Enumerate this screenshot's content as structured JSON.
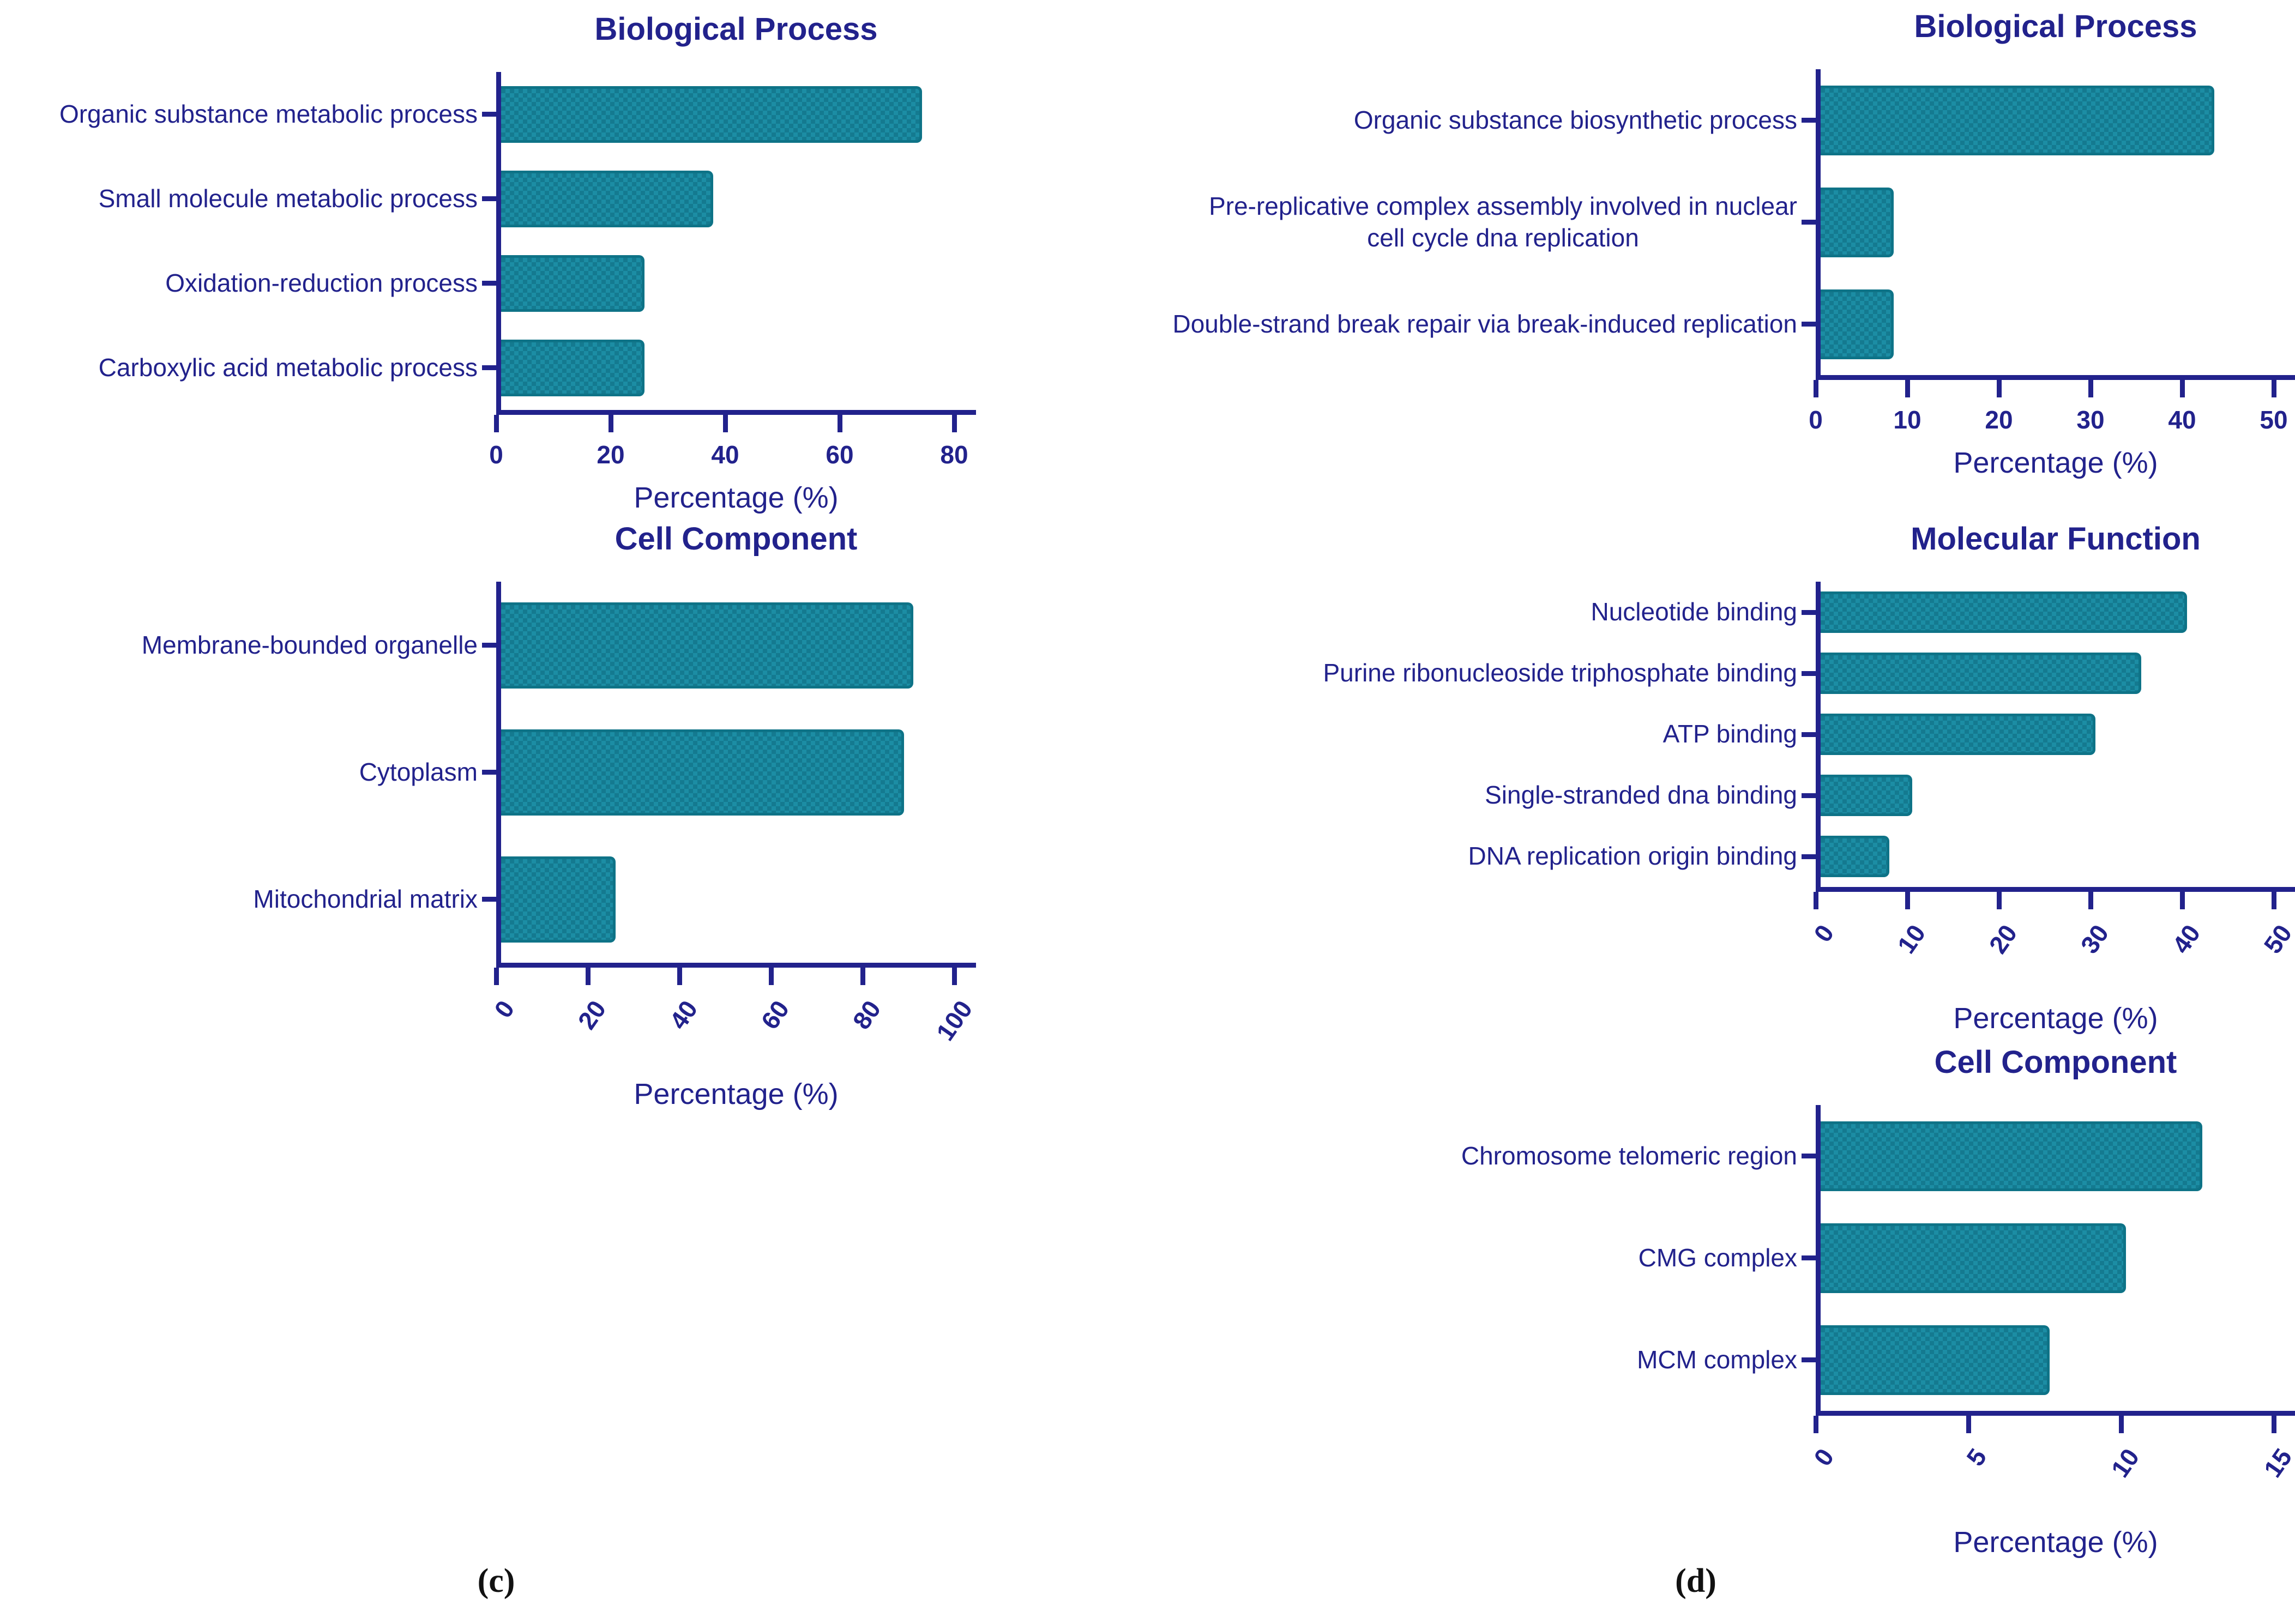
{
  "colors": {
    "navy": "#22228c",
    "bar_teal": "#17839a",
    "bar_teal_light": "#1c8da4",
    "bar_teal_dark": "#147a90",
    "bar_border": "#0e7387",
    "background": "#ffffff"
  },
  "panels": [
    {
      "label": "(c)"
    },
    {
      "label": "(d)"
    }
  ],
  "chart_data": [
    {
      "type": "bar",
      "panel": "c",
      "title": "Biological Process",
      "xlabel": "Percentage (%)",
      "orientation": "horizontal",
      "categories": [
        "Organic substance metabolic process",
        "Small molecule metabolic process",
        "Oxidation-reduction process",
        "Carboxylic acid metabolic process"
      ],
      "values": [
        73.5,
        37,
        25,
        25
      ],
      "xlim": [
        0,
        80
      ],
      "ticks": [
        0,
        20,
        40,
        60,
        80
      ],
      "rotated_tick_labels": false,
      "grid": false,
      "legend": "none"
    },
    {
      "type": "bar",
      "panel": "c",
      "title": "Cell Component",
      "xlabel": "Percentage (%)",
      "orientation": "horizontal",
      "categories": [
        "Membrane-bounded organelle",
        "Cytoplasm",
        "Mitochondrial matrix"
      ],
      "values": [
        90,
        88,
        25
      ],
      "xlim": [
        0,
        100
      ],
      "ticks": [
        0,
        20,
        40,
        60,
        80,
        100
      ],
      "rotated_tick_labels": true,
      "grid": false,
      "legend": "none"
    },
    {
      "type": "bar",
      "panel": "d",
      "title": "Biological Process",
      "xlabel": "Percentage (%)",
      "orientation": "horizontal",
      "categories": [
        "Organic substance biosynthetic process",
        "Pre-replicative complex assembly involved in nuclear\ncell cycle dna replication",
        "Double-strand break repair via break-induced replication"
      ],
      "values": [
        43,
        8,
        8
      ],
      "xlim": [
        0,
        50
      ],
      "ticks": [
        0,
        10,
        20,
        30,
        40,
        50
      ],
      "rotated_tick_labels": false,
      "grid": false,
      "legend": "none"
    },
    {
      "type": "bar",
      "panel": "d",
      "title": "Molecular Function",
      "xlabel": "Percentage (%)",
      "orientation": "horizontal",
      "categories": [
        "Nucleotide binding",
        "Purine ribonucleoside triphosphate binding",
        "ATP binding",
        "Single-stranded dna binding",
        "DNA replication origin binding"
      ],
      "values": [
        40,
        35,
        30,
        10,
        7.5
      ],
      "xlim": [
        0,
        50
      ],
      "ticks": [
        0,
        10,
        20,
        30,
        40,
        50
      ],
      "rotated_tick_labels": true,
      "grid": false,
      "legend": "none"
    },
    {
      "type": "bar",
      "panel": "d",
      "title": "Cell Component",
      "xlabel": "Percentage (%)",
      "orientation": "horizontal",
      "categories": [
        "Chromosome telomeric region",
        "CMG complex",
        "MCM complex"
      ],
      "values": [
        12.5,
        10,
        7.5
      ],
      "xlim": [
        0,
        15
      ],
      "ticks": [
        0,
        5,
        10,
        15
      ],
      "rotated_tick_labels": true,
      "grid": false,
      "legend": "none"
    }
  ]
}
